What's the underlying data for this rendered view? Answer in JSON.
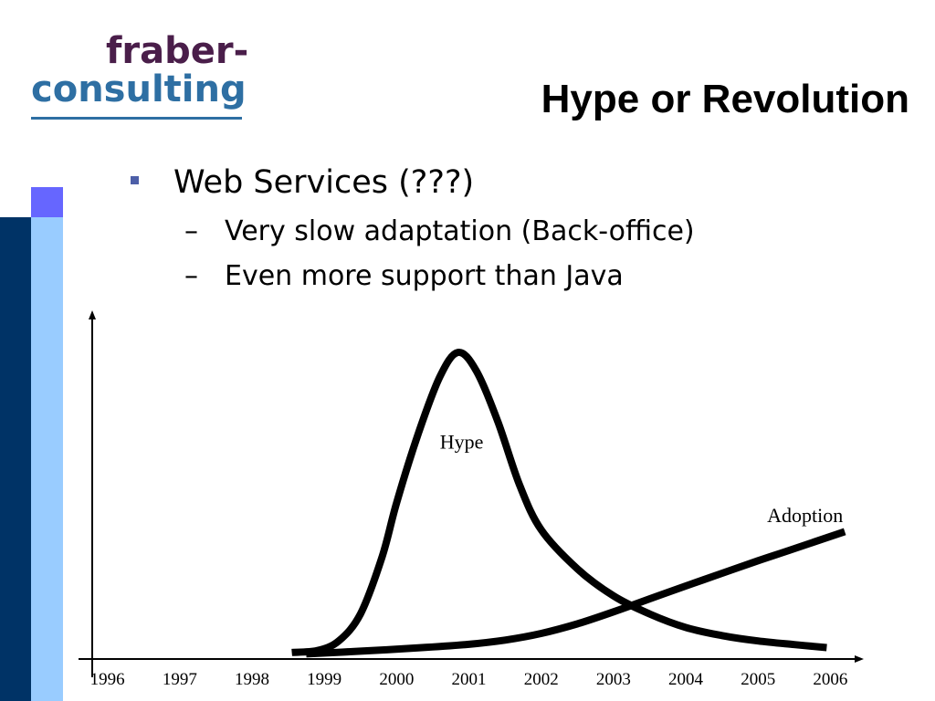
{
  "logo": {
    "line1": "fraber-",
    "line2": "consulting"
  },
  "title": "Hype or Revolution",
  "bullets": {
    "main": "Web Services (???)",
    "subs": [
      "Very slow adaptation (Back-office)",
      "Even more support than Java"
    ],
    "dash": "–"
  },
  "chart_data": {
    "type": "line",
    "categories": [
      "1996",
      "1997",
      "1998",
      "1999",
      "2000",
      "2001",
      "2002",
      "2003",
      "2004",
      "2005",
      "2006"
    ],
    "xlabel": "",
    "ylabel": "",
    "grid": false,
    "series": [
      {
        "name": "Hype",
        "values": [
          {
            "x": 1998.55,
            "y": 0.2
          },
          {
            "x": 1998.9,
            "y": 0.8
          },
          {
            "x": 1999.2,
            "y": 4
          },
          {
            "x": 1999.5,
            "y": 13
          },
          {
            "x": 1999.8,
            "y": 32
          },
          {
            "x": 2000.0,
            "y": 50
          },
          {
            "x": 2000.3,
            "y": 73
          },
          {
            "x": 2000.6,
            "y": 92
          },
          {
            "x": 2000.85,
            "y": 100
          },
          {
            "x": 2001.1,
            "y": 94
          },
          {
            "x": 2001.4,
            "y": 77
          },
          {
            "x": 2001.7,
            "y": 56
          },
          {
            "x": 2002.0,
            "y": 41
          },
          {
            "x": 2002.5,
            "y": 28
          },
          {
            "x": 2003.0,
            "y": 19
          },
          {
            "x": 2003.5,
            "y": 13
          },
          {
            "x": 2004.0,
            "y": 8.5
          },
          {
            "x": 2004.5,
            "y": 5.8
          },
          {
            "x": 2005.0,
            "y": 4
          },
          {
            "x": 2005.5,
            "y": 2.8
          },
          {
            "x": 2005.95,
            "y": 1.8
          }
        ]
      },
      {
        "name": "Adoption",
        "values": [
          {
            "x": 1998.75,
            "y": -0.3
          },
          {
            "x": 1999.5,
            "y": 0.6
          },
          {
            "x": 2000.3,
            "y": 1.7
          },
          {
            "x": 2001.0,
            "y": 2.9
          },
          {
            "x": 2001.5,
            "y": 4.3
          },
          {
            "x": 2002.0,
            "y": 6.5
          },
          {
            "x": 2002.5,
            "y": 9.7
          },
          {
            "x": 2003.0,
            "y": 13.7
          },
          {
            "x": 2003.5,
            "y": 18
          },
          {
            "x": 2004.0,
            "y": 22.3
          },
          {
            "x": 2004.5,
            "y": 26.5
          },
          {
            "x": 2005.0,
            "y": 30.7
          },
          {
            "x": 2005.5,
            "y": 34.7
          },
          {
            "x": 2006.2,
            "y": 40.4
          }
        ]
      }
    ],
    "annotations": [
      {
        "text": "Hype",
        "x": 2000.9,
        "y": 68
      },
      {
        "text": "Adoption",
        "x": 2005.65,
        "y": 43.5
      }
    ],
    "xlim": [
      1995.6,
      2006.45
    ],
    "ylim": [
      -2,
      114
    ]
  }
}
